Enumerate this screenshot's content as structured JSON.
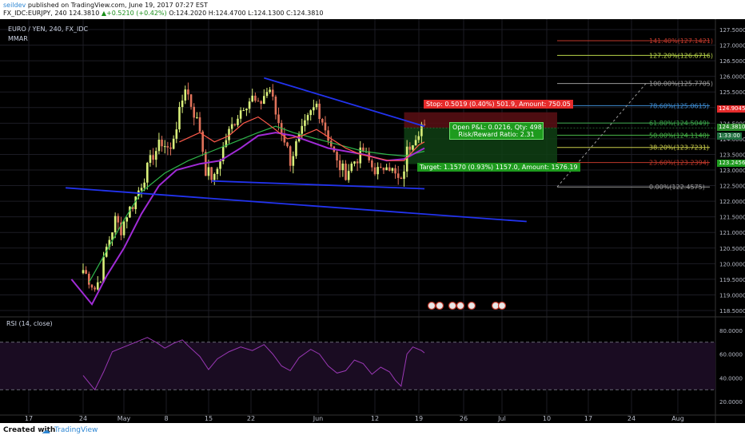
{
  "header": {
    "author": "seildev",
    "published": " published on TradingView.com, June 19, 2017 07:27 EST",
    "symbol_line": "FX_IDC:EURJPY, 240  124.3810",
    "change": "+0.5210 (+0.42%)",
    "ohlc": "O:124.2020 H:124.4700 L:124.1300 C:124.3810"
  },
  "chart_labels": {
    "symbol": "EURO / YEN, 240, FX_IDC",
    "indicator": "MMAR",
    "rsi": "RSI (14, close)"
  },
  "position": {
    "stop": "Stop: 0.5019 (0.40%) 501.9, Amount: 750.05",
    "target": "Target: 1.1570 (0.93%) 1157.0, Amount: 1576.19",
    "pnl_line1": "Open P&L: 0.0216, Qty: 498",
    "pnl_line2": "Risk/Reward Ratio: 2.31",
    "entry": 124.3481,
    "stop_level": 124.85,
    "target_level": 123.19
  },
  "price_tags": {
    "stop": "124.9045",
    "last": "124.3810",
    "target": "123.2456",
    "ma": "1:33:00"
  },
  "footer": {
    "created": "Created with",
    "brand": "TradingView"
  },
  "colors": {
    "background": "#000000",
    "candle_up": "#d9f07a",
    "candle_down": "#e0725a",
    "ma_fast": "#ff5a4a",
    "ma_mid": "#a02bd6",
    "ma_slow": "#2fb54a",
    "trendline": "#2233ee",
    "rsi_line": "#9a38b5",
    "grid": "#1c1c24"
  },
  "chart_data": {
    "type": "candlestick",
    "title": "EURO / YEN, 240, FX_IDC",
    "price_axis": {
      "min": 118.5,
      "max": 127.5,
      "ticks": [
        "127.5000",
        "127.0000",
        "126.5000",
        "126.0000",
        "125.5000",
        "125.0000",
        "124.5000",
        "124.0000",
        "123.5000",
        "123.0000",
        "122.5000",
        "122.0000",
        "121.5000",
        "121.0000",
        "120.5000",
        "120.0000",
        "119.5000",
        "119.0000",
        "118.5000"
      ]
    },
    "x_axis": {
      "labels": [
        "17",
        "24",
        "May",
        "8",
        "15",
        "22",
        "Jun",
        "12",
        "19",
        "26",
        "Jul",
        "10",
        "17",
        "24",
        "Aug"
      ]
    },
    "price_path": [
      [
        0,
        119.8
      ],
      [
        4,
        119.2
      ],
      [
        6,
        119.6
      ],
      [
        8,
        120.5
      ],
      [
        11,
        121.4
      ],
      [
        13,
        121.1
      ],
      [
        15,
        121.6
      ],
      [
        17,
        121.9
      ],
      [
        21,
        122.8
      ],
      [
        24,
        123.5
      ],
      [
        27,
        123.9
      ],
      [
        30,
        123.6
      ],
      [
        31,
        124.1
      ],
      [
        33,
        124.8
      ],
      [
        35,
        125.7
      ],
      [
        37,
        125.1
      ],
      [
        40,
        124.3
      ],
      [
        42,
        123.0
      ],
      [
        45,
        122.7
      ],
      [
        47,
        123.4
      ],
      [
        49,
        124.0
      ],
      [
        52,
        124.6
      ],
      [
        55,
        125.1
      ],
      [
        58,
        125.3
      ],
      [
        60,
        125.0
      ],
      [
        62,
        125.4
      ],
      [
        64,
        125.6
      ],
      [
        66,
        124.8
      ],
      [
        69,
        124.0
      ],
      [
        71,
        123.3
      ],
      [
        73,
        123.8
      ],
      [
        76,
        124.4
      ],
      [
        78,
        124.8
      ],
      [
        80,
        125.1
      ],
      [
        82,
        124.6
      ],
      [
        85,
        123.8
      ],
      [
        87,
        123.2
      ],
      [
        90,
        122.9
      ],
      [
        93,
        123.3
      ],
      [
        96,
        123.6
      ],
      [
        99,
        123.1
      ],
      [
        102,
        122.9
      ],
      [
        104,
        123.3
      ],
      [
        107,
        122.8
      ],
      [
        109,
        122.55
      ],
      [
        111,
        123.6
      ],
      [
        113,
        124.0
      ],
      [
        116,
        124.45
      ],
      [
        117,
        124.3
      ]
    ],
    "ma_fast": [
      [
        33,
        123.9
      ],
      [
        40,
        124.2
      ],
      [
        45,
        123.9
      ],
      [
        50,
        124.1
      ],
      [
        55,
        124.5
      ],
      [
        60,
        124.7
      ],
      [
        63,
        124.5
      ],
      [
        70,
        124.0
      ],
      [
        75,
        124.1
      ],
      [
        80,
        124.3
      ],
      [
        85,
        124.0
      ],
      [
        90,
        123.7
      ],
      [
        95,
        123.5
      ],
      [
        100,
        123.4
      ],
      [
        105,
        123.3
      ],
      [
        110,
        123.3
      ],
      [
        115,
        123.8
      ],
      [
        117,
        123.9
      ]
    ],
    "ma_mid": [
      [
        -4,
        119.5
      ],
      [
        3,
        118.7
      ],
      [
        8,
        119.6
      ],
      [
        14,
        120.5
      ],
      [
        20,
        121.6
      ],
      [
        26,
        122.5
      ],
      [
        32,
        123.0
      ],
      [
        40,
        123.2
      ],
      [
        47,
        123.3
      ],
      [
        54,
        123.7
      ],
      [
        60,
        124.1
      ],
      [
        66,
        124.2
      ],
      [
        72,
        124.1
      ],
      [
        78,
        123.9
      ],
      [
        84,
        123.7
      ],
      [
        90,
        123.6
      ],
      [
        96,
        123.5
      ],
      [
        104,
        123.3
      ],
      [
        110,
        123.35
      ],
      [
        117,
        123.7
      ]
    ],
    "ma_slow": [
      [
        2,
        119.4
      ],
      [
        8,
        120.4
      ],
      [
        14,
        121.4
      ],
      [
        20,
        122.3
      ],
      [
        28,
        122.9
      ],
      [
        36,
        123.3
      ],
      [
        44,
        123.6
      ],
      [
        52,
        123.9
      ],
      [
        60,
        124.2
      ],
      [
        66,
        124.4
      ],
      [
        72,
        124.2
      ],
      [
        80,
        124.0
      ],
      [
        88,
        123.8
      ],
      [
        96,
        123.6
      ],
      [
        104,
        123.5
      ],
      [
        110,
        123.45
      ],
      [
        117,
        123.6
      ]
    ],
    "trendlines": [
      {
        "name": "upper-channel",
        "from": [
          62,
          125.95
        ],
        "to": [
          117,
          124.4
        ]
      },
      {
        "name": "lower-channel",
        "from": [
          44,
          122.65
        ],
        "to": [
          117,
          122.4
        ]
      },
      {
        "name": "long-support",
        "from": [
          -6,
          122.43
        ],
        "to": [
          152,
          121.35
        ]
      }
    ],
    "fibonacci": {
      "levels": [
        {
          "label": "141.40%(127.1421)",
          "price": 127.1421,
          "color": "#c0392b"
        },
        {
          "label": "127.20%(126.6716)",
          "price": 126.6716,
          "color": "#b8d44a"
        },
        {
          "label": "100.00%(125.7705)",
          "price": 125.7705,
          "color": "#9a9a9a"
        },
        {
          "label": "78.60%(125.0615)",
          "price": 125.0615,
          "color": "#3f8fd6"
        },
        {
          "label": "61.80%(124.5049)",
          "price": 124.5049,
          "color": "#3aa64a"
        },
        {
          "label": "50.00%(124.1140)",
          "price": 124.114,
          "color": "#48b84a"
        },
        {
          "label": "38.20%(123.7231)",
          "price": 123.7231,
          "color": "#c9cc4a"
        },
        {
          "label": "23.60%(123.2394)",
          "price": 123.2394,
          "color": "#c0392b"
        },
        {
          "label": "0.00%(122.4575)",
          "price": 122.4575,
          "color": "#9a9a9a"
        }
      ]
    },
    "rsi": {
      "name": "RSI (14, close)",
      "ylim": [
        10,
        90
      ],
      "ticks": [
        "80.0000",
        "60.0000",
        "40.0000",
        "20.0000"
      ],
      "bands": [
        70,
        30
      ],
      "values": [
        [
          0,
          42
        ],
        [
          4,
          30
        ],
        [
          7,
          45
        ],
        [
          10,
          62
        ],
        [
          14,
          66
        ],
        [
          18,
          70
        ],
        [
          22,
          74
        ],
        [
          25,
          70
        ],
        [
          28,
          65
        ],
        [
          31,
          69
        ],
        [
          34,
          72
        ],
        [
          36,
          67
        ],
        [
          40,
          58
        ],
        [
          43,
          47
        ],
        [
          46,
          56
        ],
        [
          50,
          62
        ],
        [
          54,
          66
        ],
        [
          58,
          63
        ],
        [
          62,
          68
        ],
        [
          65,
          60
        ],
        [
          68,
          50
        ],
        [
          71,
          46
        ],
        [
          74,
          57
        ],
        [
          78,
          64
        ],
        [
          81,
          60
        ],
        [
          84,
          50
        ],
        [
          87,
          44
        ],
        [
          90,
          46
        ],
        [
          93,
          55
        ],
        [
          96,
          52
        ],
        [
          99,
          43
        ],
        [
          102,
          49
        ],
        [
          105,
          45
        ],
        [
          107,
          38
        ],
        [
          109,
          33
        ],
        [
          111,
          60
        ],
        [
          113,
          66
        ],
        [
          116,
          63
        ],
        [
          117,
          61
        ]
      ]
    }
  }
}
